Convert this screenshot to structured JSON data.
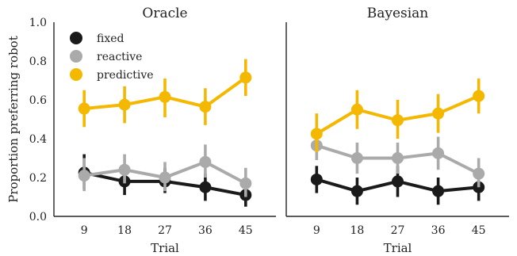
{
  "chart_data": [
    {
      "type": "line",
      "title": "Oracle",
      "xlabel": "Trial",
      "ylabel": "Proportion preferring robot",
      "x": [
        "9",
        "18",
        "27",
        "36",
        "45"
      ],
      "ylim": [
        0.0,
        1.0
      ],
      "yticks": [
        "0.0",
        "0.2",
        "0.4",
        "0.6",
        "0.8",
        "1.0"
      ],
      "legend": "top-left",
      "series": [
        {
          "name": "fixed",
          "color": "#1a1a1a",
          "values": [
            0.225,
            0.18,
            0.18,
            0.15,
            0.11
          ],
          "err_low": [
            0.14,
            0.11,
            0.12,
            0.08,
            0.05
          ],
          "err_high": [
            0.32,
            0.25,
            0.25,
            0.22,
            0.18
          ]
        },
        {
          "name": "reactive",
          "color": "#aaaaaa",
          "values": [
            0.21,
            0.24,
            0.2,
            0.28,
            0.17
          ],
          "err_low": [
            0.13,
            0.17,
            0.13,
            0.2,
            0.1
          ],
          "err_high": [
            0.3,
            0.32,
            0.28,
            0.37,
            0.25
          ]
        },
        {
          "name": "predictive",
          "color": "#f5b800",
          "values": [
            0.555,
            0.575,
            0.615,
            0.565,
            0.715
          ],
          "err_low": [
            0.46,
            0.48,
            0.51,
            0.47,
            0.62
          ],
          "err_high": [
            0.65,
            0.67,
            0.71,
            0.66,
            0.81
          ]
        }
      ]
    },
    {
      "type": "line",
      "title": "Bayesian",
      "xlabel": "Trial",
      "ylabel": "",
      "x": [
        "9",
        "18",
        "27",
        "36",
        "45"
      ],
      "ylim": [
        0.0,
        1.0
      ],
      "series": [
        {
          "name": "fixed",
          "color": "#1a1a1a",
          "values": [
            0.19,
            0.13,
            0.18,
            0.13,
            0.15
          ],
          "err_low": [
            0.12,
            0.06,
            0.1,
            0.06,
            0.08
          ],
          "err_high": [
            0.26,
            0.2,
            0.26,
            0.2,
            0.22
          ]
        },
        {
          "name": "reactive",
          "color": "#aaaaaa",
          "values": [
            0.365,
            0.3,
            0.3,
            0.325,
            0.22
          ],
          "err_low": [
            0.29,
            0.22,
            0.22,
            0.24,
            0.15
          ],
          "err_high": [
            0.44,
            0.38,
            0.38,
            0.41,
            0.3
          ]
        },
        {
          "name": "predictive",
          "color": "#f5b800",
          "values": [
            0.425,
            0.55,
            0.495,
            0.53,
            0.62
          ],
          "err_low": [
            0.33,
            0.45,
            0.4,
            0.43,
            0.53
          ],
          "err_high": [
            0.53,
            0.65,
            0.6,
            0.63,
            0.71
          ]
        }
      ]
    }
  ]
}
